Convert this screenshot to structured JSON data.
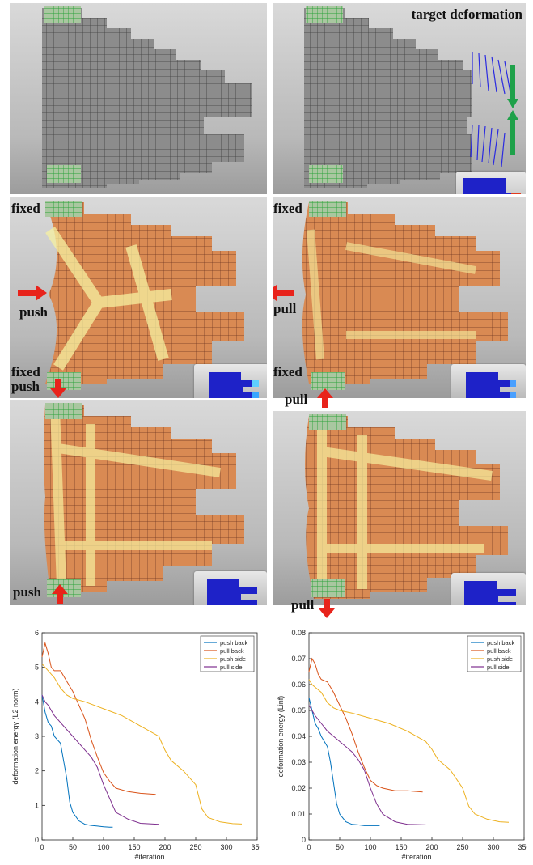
{
  "labels": {
    "target": "target deformation",
    "fixed": "fixed",
    "push": "push",
    "pull": "pull"
  },
  "colors": {
    "push_back": "#0072bd",
    "pull_back": "#d95319",
    "push_side": "#edb120",
    "pull_side": "#7e2f8e",
    "arrow": "#e8231b",
    "target_arrow": "#1fa14a"
  },
  "chart_data": [
    {
      "type": "line",
      "xlabel": "#iteration",
      "ylabel": "deformation energy (L2 norm)",
      "xlim": [
        0,
        350
      ],
      "ylim": [
        0,
        6
      ],
      "xticks": [
        "0",
        "50",
        "100",
        "150",
        "200",
        "250",
        "300",
        "350"
      ],
      "yticks": [
        "0",
        "1",
        "2",
        "3",
        "4",
        "5",
        "6"
      ],
      "legend": "top-right",
      "series": [
        {
          "name": "push back",
          "color": "#0072bd",
          "x": [
            0,
            5,
            10,
            15,
            20,
            25,
            30,
            35,
            40,
            45,
            50,
            60,
            70,
            80,
            90,
            100,
            110,
            115
          ],
          "y": [
            4.2,
            3.7,
            3.4,
            3.3,
            3.0,
            2.9,
            2.8,
            2.3,
            1.8,
            1.1,
            0.8,
            0.55,
            0.45,
            0.42,
            0.4,
            0.38,
            0.37,
            0.37
          ]
        },
        {
          "name": "pull back",
          "color": "#d95319",
          "x": [
            0,
            5,
            10,
            15,
            20,
            30,
            40,
            50,
            60,
            70,
            80,
            90,
            100,
            110,
            120,
            140,
            160,
            185
          ],
          "y": [
            5.3,
            5.7,
            5.4,
            5.0,
            4.9,
            4.9,
            4.6,
            4.3,
            3.9,
            3.5,
            2.9,
            2.4,
            1.95,
            1.7,
            1.5,
            1.4,
            1.35,
            1.32
          ]
        },
        {
          "name": "push side",
          "color": "#edb120",
          "x": [
            0,
            5,
            10,
            20,
            30,
            40,
            50,
            70,
            100,
            130,
            160,
            190,
            200,
            210,
            230,
            250,
            260,
            270,
            290,
            310,
            325
          ],
          "y": [
            5.1,
            5.0,
            4.9,
            4.7,
            4.4,
            4.2,
            4.1,
            4.0,
            3.8,
            3.6,
            3.3,
            3.0,
            2.6,
            2.3,
            2.0,
            1.6,
            0.9,
            0.65,
            0.52,
            0.47,
            0.46
          ]
        },
        {
          "name": "pull side",
          "color": "#7e2f8e",
          "x": [
            0,
            5,
            10,
            20,
            30,
            40,
            50,
            60,
            70,
            80,
            90,
            100,
            110,
            120,
            140,
            160,
            190
          ],
          "y": [
            4.2,
            4.0,
            3.9,
            3.6,
            3.4,
            3.2,
            3.0,
            2.8,
            2.6,
            2.4,
            2.1,
            1.6,
            1.2,
            0.8,
            0.6,
            0.48,
            0.45
          ]
        }
      ]
    },
    {
      "type": "line",
      "xlabel": "#iteration",
      "ylabel": "deformation energy (Linf)",
      "xlim": [
        0,
        350
      ],
      "ylim": [
        0,
        0.08
      ],
      "xticks": [
        "0",
        "50",
        "100",
        "150",
        "200",
        "250",
        "300",
        "350"
      ],
      "yticks": [
        "0",
        "0.01",
        "0.02",
        "0.03",
        "0.04",
        "0.05",
        "0.06",
        "0.07",
        "0.08"
      ],
      "legend": "top-right",
      "series": [
        {
          "name": "push back",
          "color": "#0072bd",
          "x": [
            0,
            5,
            10,
            15,
            20,
            25,
            30,
            35,
            40,
            45,
            50,
            60,
            70,
            80,
            90,
            100,
            110,
            115
          ],
          "y": [
            0.055,
            0.05,
            0.045,
            0.043,
            0.04,
            0.038,
            0.036,
            0.03,
            0.022,
            0.014,
            0.01,
            0.007,
            0.006,
            0.0058,
            0.0055,
            0.0055,
            0.0055,
            0.0055
          ]
        },
        {
          "name": "pull back",
          "color": "#d95319",
          "x": [
            0,
            5,
            10,
            15,
            20,
            30,
            40,
            50,
            60,
            70,
            80,
            90,
            100,
            110,
            120,
            140,
            160,
            185
          ],
          "y": [
            0.065,
            0.07,
            0.068,
            0.064,
            0.062,
            0.061,
            0.057,
            0.052,
            0.047,
            0.041,
            0.034,
            0.028,
            0.023,
            0.021,
            0.02,
            0.019,
            0.019,
            0.0185
          ]
        },
        {
          "name": "push side",
          "color": "#edb120",
          "x": [
            0,
            5,
            10,
            20,
            30,
            40,
            50,
            70,
            100,
            130,
            160,
            190,
            200,
            210,
            230,
            250,
            260,
            270,
            290,
            310,
            325
          ],
          "y": [
            0.062,
            0.06,
            0.059,
            0.057,
            0.053,
            0.051,
            0.05,
            0.049,
            0.047,
            0.045,
            0.042,
            0.038,
            0.035,
            0.031,
            0.027,
            0.02,
            0.013,
            0.01,
            0.008,
            0.007,
            0.0068
          ]
        },
        {
          "name": "pull side",
          "color": "#7e2f8e",
          "x": [
            0,
            5,
            10,
            20,
            30,
            40,
            50,
            60,
            70,
            80,
            90,
            100,
            110,
            120,
            140,
            160,
            190
          ],
          "y": [
            0.052,
            0.05,
            0.048,
            0.045,
            0.042,
            0.04,
            0.038,
            0.036,
            0.034,
            0.031,
            0.027,
            0.02,
            0.014,
            0.01,
            0.007,
            0.006,
            0.0058
          ]
        }
      ]
    }
  ]
}
